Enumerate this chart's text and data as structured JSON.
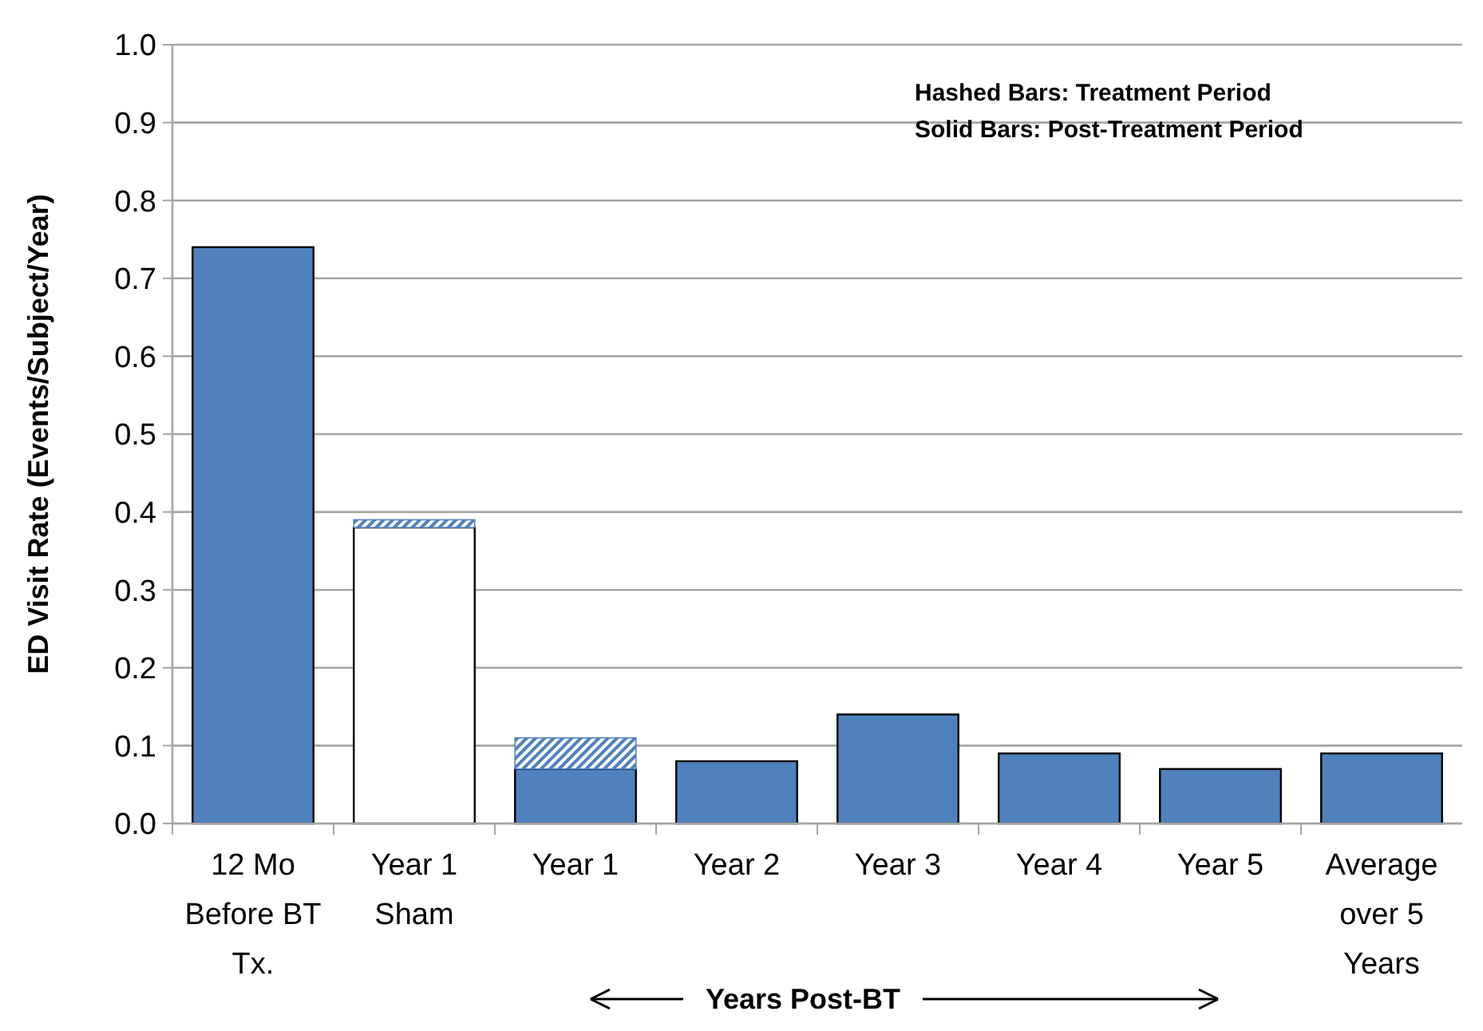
{
  "chart_data": {
    "type": "bar",
    "stacked": true,
    "ylabel": "ED Visit Rate (Events/Subject/Year)",
    "categories": [
      "12 Mo\nBefore BT\nTx.",
      "Year 1\nSham",
      "Year 1",
      "Year 2",
      "Year 3",
      "Year 4",
      "Year 5",
      "Average\nover 5\nYears"
    ],
    "series": [
      {
        "color": "#4f81bd",
        "colors": [
          "#4f81bd",
          "#ffffff",
          "#4f81bd",
          "#4f81bd",
          "#4f81bd",
          "#4f81bd",
          "#4f81bd",
          "#4f81bd"
        ],
        "values": [
          0.74,
          0.38,
          0.07,
          0.08,
          0.14,
          0.09,
          0.07,
          0.09
        ]
      },
      {
        "color": "#4f81bd",
        "values": [
          null,
          0.01,
          0.04,
          null,
          null,
          null,
          null,
          null
        ]
      }
    ],
    "ylim": [
      0,
      1
    ],
    "yticks": [
      {
        "value": 0,
        "label": "0.0"
      },
      {
        "value": 0.1,
        "label": "0.1"
      },
      {
        "value": 0.2,
        "label": "0.2"
      },
      {
        "value": 0.3,
        "label": "0.3"
      },
      {
        "value": 0.4,
        "label": "0.4"
      },
      {
        "value": 0.5,
        "label": "0.5"
      },
      {
        "value": 0.6,
        "label": "0.6"
      },
      {
        "value": 0.7,
        "label": "0.7"
      },
      {
        "value": 0.8,
        "label": "0.8"
      },
      {
        "value": 0.9,
        "label": "0.9"
      },
      {
        "value": 1,
        "label": "1.0"
      }
    ],
    "grid": "y",
    "annotations": [
      "Hashed Bars: Treatment Period",
      "Solid Bars: Post-Treatment Period",
      "Years Post-BT"
    ]
  }
}
